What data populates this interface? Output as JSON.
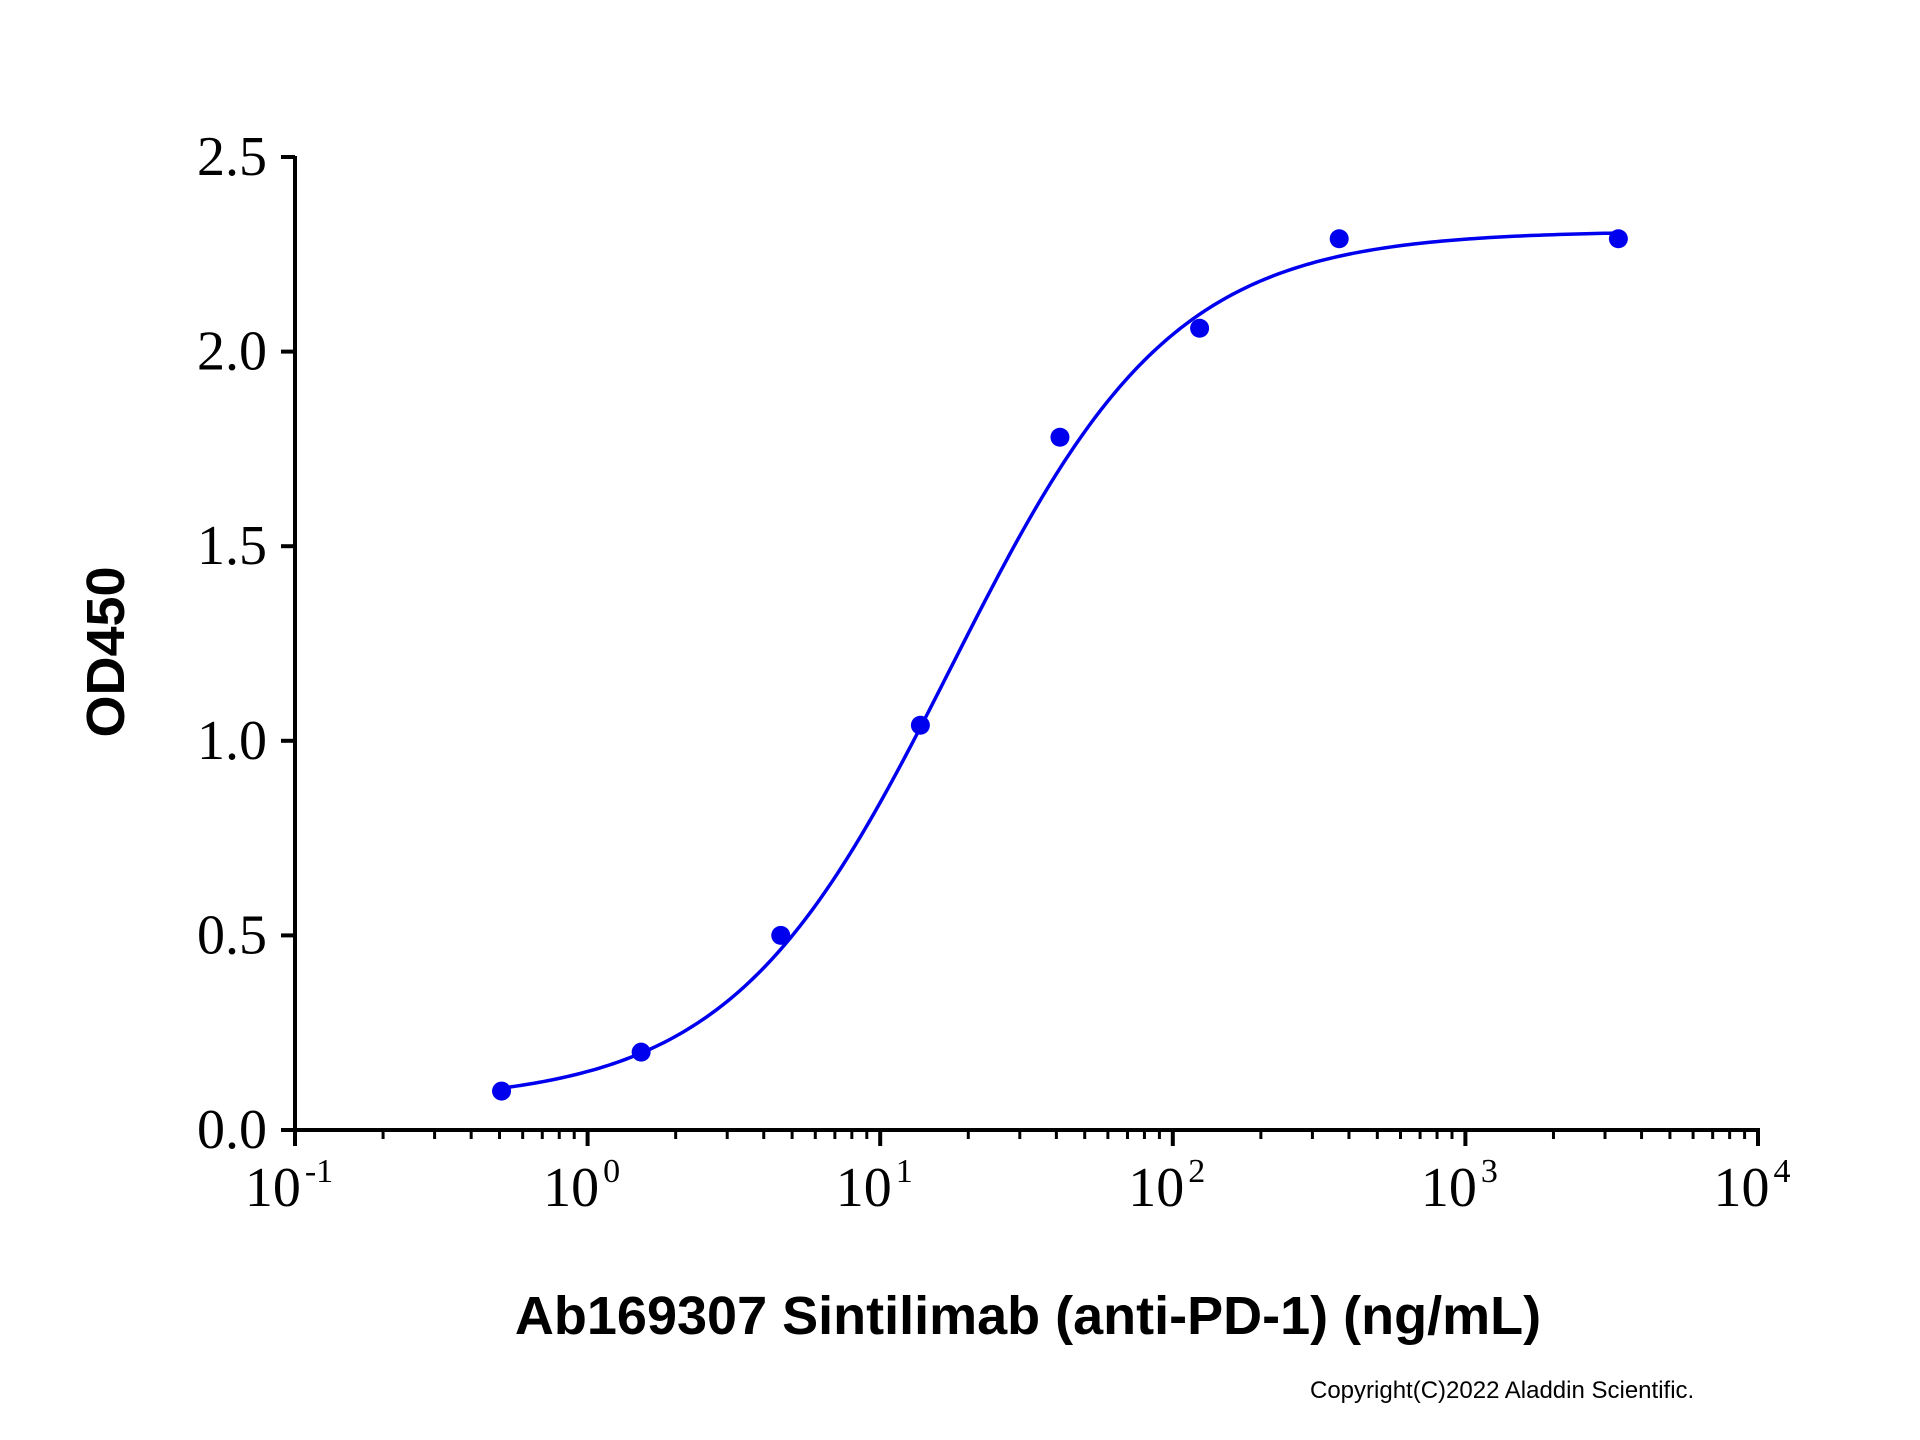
{
  "chart_data": {
    "type": "scatter",
    "xlabel": "Ab169307 Sintilimab (anti-PD-1) (ng/mL)",
    "ylabel": "OD450",
    "xscale": "log",
    "xlim": [
      0.1,
      10000
    ],
    "ylim": [
      0,
      2.5
    ],
    "x_ticks": [
      {
        "value": 0.1,
        "base": "10",
        "exp": "-1"
      },
      {
        "value": 1,
        "base": "10",
        "exp": "0"
      },
      {
        "value": 10,
        "base": "10",
        "exp": "1"
      },
      {
        "value": 100,
        "base": "10",
        "exp": "2"
      },
      {
        "value": 1000,
        "base": "10",
        "exp": "3"
      },
      {
        "value": 10000,
        "base": "10",
        "exp": "4"
      }
    ],
    "y_ticks": [
      {
        "value": 0,
        "label": "0.0"
      },
      {
        "value": 0.5,
        "label": "0.5"
      },
      {
        "value": 1.0,
        "label": "1.0"
      },
      {
        "value": 1.5,
        "label": "1.5"
      },
      {
        "value": 2.0,
        "label": "2.0"
      },
      {
        "value": 2.5,
        "label": "2.5"
      }
    ],
    "series": [
      {
        "x": [
          0.508,
          1.524,
          4.572,
          13.72,
          41.15,
          123.5,
          370.4,
          3333
        ],
        "y": [
          0.1,
          0.2,
          0.5,
          1.04,
          1.78,
          2.06,
          2.29,
          2.29
        ],
        "color": "#0000ee",
        "fit": {
          "model": "4PL",
          "bottom": 0.07,
          "top": 2.31,
          "ec50": 17.5,
          "hill": 1.15
        }
      }
    ],
    "grid": false,
    "legend": "none"
  },
  "footer": {
    "copyright": "Copyright(C)2022 Aladdin Scientific."
  }
}
